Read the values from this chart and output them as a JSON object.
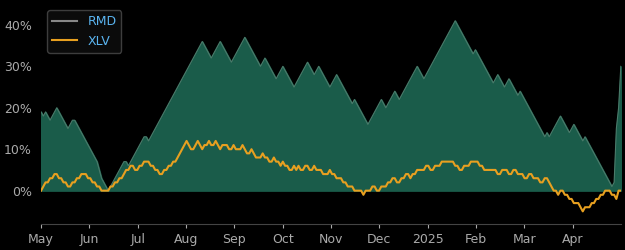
{
  "background_color": "#000000",
  "plot_bg_color": "#000000",
  "fill_color": "#1a5c4a",
  "rmd_line_color": "#4a7a6a",
  "xlv_line_color": "#e8a020",
  "legend_text_color": "#5ab4f0",
  "tick_label_color": "#aaaaaa",
  "yticks": [
    0,
    10,
    20,
    30,
    40
  ],
  "ytick_labels": [
    "0%",
    "10%",
    "20%",
    "30%",
    "40%"
  ],
  "xtick_labels": [
    "May",
    "Jun",
    "Jul",
    "Aug",
    "Sep",
    "Oct",
    "Nov",
    "Dec",
    "2025",
    "Feb",
    "Mar",
    "Apr"
  ],
  "ylim": [
    -8,
    45
  ],
  "n_points": 260,
  "rmd_data": [
    19,
    18,
    19,
    18,
    17,
    18,
    19,
    20,
    19,
    18,
    17,
    16,
    15,
    16,
    17,
    17,
    16,
    15,
    14,
    13,
    12,
    11,
    10,
    9,
    8,
    7,
    5,
    3,
    2,
    1,
    0,
    1,
    2,
    3,
    4,
    5,
    6,
    7,
    7,
    6,
    7,
    8,
    9,
    10,
    11,
    12,
    13,
    13,
    12,
    13,
    14,
    15,
    16,
    17,
    18,
    19,
    20,
    21,
    22,
    23,
    24,
    25,
    26,
    27,
    28,
    29,
    30,
    31,
    32,
    33,
    34,
    35,
    36,
    35,
    34,
    33,
    32,
    33,
    34,
    35,
    36,
    35,
    34,
    33,
    32,
    31,
    32,
    33,
    34,
    35,
    36,
    37,
    36,
    35,
    34,
    33,
    32,
    31,
    30,
    31,
    32,
    31,
    30,
    29,
    28,
    27,
    28,
    29,
    30,
    29,
    28,
    27,
    26,
    25,
    26,
    27,
    28,
    29,
    30,
    31,
    30,
    29,
    28,
    29,
    30,
    29,
    28,
    27,
    26,
    25,
    26,
    27,
    28,
    27,
    26,
    25,
    24,
    23,
    22,
    21,
    22,
    21,
    20,
    19,
    18,
    17,
    16,
    17,
    18,
    19,
    20,
    21,
    22,
    21,
    20,
    21,
    22,
    23,
    24,
    23,
    22,
    23,
    24,
    25,
    26,
    27,
    28,
    29,
    30,
    29,
    28,
    27,
    28,
    29,
    30,
    31,
    32,
    33,
    34,
    35,
    36,
    37,
    38,
    39,
    40,
    41,
    40,
    39,
    38,
    37,
    36,
    35,
    34,
    33,
    34,
    33,
    32,
    31,
    30,
    29,
    28,
    27,
    26,
    27,
    28,
    27,
    26,
    25,
    26,
    27,
    26,
    25,
    24,
    23,
    24,
    23,
    22,
    21,
    20,
    19,
    18,
    17,
    16,
    15,
    14,
    13,
    14,
    13,
    14,
    15,
    16,
    17,
    18,
    17,
    16,
    15,
    14,
    15,
    16,
    15,
    14,
    13,
    12,
    13,
    12,
    11,
    10,
    9,
    8,
    7,
    6,
    5,
    4,
    3,
    2,
    1,
    2,
    15,
    20,
    30
  ],
  "xlv_data": [
    0,
    1,
    2,
    2,
    3,
    3,
    4,
    4,
    3,
    3,
    2,
    2,
    1,
    1,
    2,
    2,
    3,
    3,
    4,
    4,
    4,
    3,
    3,
    2,
    2,
    1,
    1,
    0,
    0,
    0,
    0,
    1,
    1,
    2,
    2,
    3,
    3,
    4,
    5,
    5,
    6,
    6,
    5,
    5,
    6,
    6,
    7,
    7,
    7,
    6,
    6,
    5,
    5,
    4,
    4,
    5,
    5,
    6,
    6,
    7,
    7,
    8,
    9,
    10,
    11,
    12,
    11,
    10,
    10,
    11,
    12,
    11,
    10,
    11,
    11,
    12,
    11,
    11,
    12,
    11,
    10,
    11,
    11,
    11,
    10,
    10,
    11,
    10,
    10,
    10,
    11,
    10,
    9,
    9,
    10,
    9,
    8,
    8,
    8,
    9,
    8,
    8,
    7,
    7,
    8,
    7,
    7,
    6,
    7,
    6,
    6,
    5,
    5,
    6,
    5,
    6,
    5,
    5,
    6,
    6,
    5,
    5,
    6,
    5,
    5,
    5,
    4,
    4,
    4,
    5,
    4,
    4,
    3,
    3,
    3,
    2,
    2,
    1,
    1,
    1,
    0,
    0,
    0,
    0,
    -1,
    0,
    0,
    0,
    1,
    1,
    0,
    0,
    1,
    1,
    1,
    2,
    2,
    3,
    3,
    2,
    2,
    3,
    3,
    4,
    4,
    3,
    4,
    4,
    5,
    5,
    5,
    5,
    6,
    6,
    5,
    5,
    6,
    6,
    6,
    7,
    7,
    7,
    7,
    7,
    7,
    6,
    6,
    5,
    5,
    6,
    6,
    6,
    7,
    7,
    7,
    7,
    6,
    6,
    5,
    5,
    5,
    5,
    5,
    5,
    4,
    4,
    5,
    5,
    5,
    4,
    4,
    5,
    5,
    4,
    4,
    4,
    3,
    3,
    4,
    4,
    3,
    3,
    3,
    2,
    2,
    3,
    3,
    2,
    1,
    0,
    0,
    -1,
    0,
    0,
    -1,
    -1,
    -2,
    -2,
    -3,
    -3,
    -3,
    -4,
    -5,
    -4,
    -4,
    -4,
    -3,
    -3,
    -2,
    -2,
    -1,
    -1,
    0,
    0,
    0,
    -1,
    -1,
    -2,
    0,
    0
  ]
}
